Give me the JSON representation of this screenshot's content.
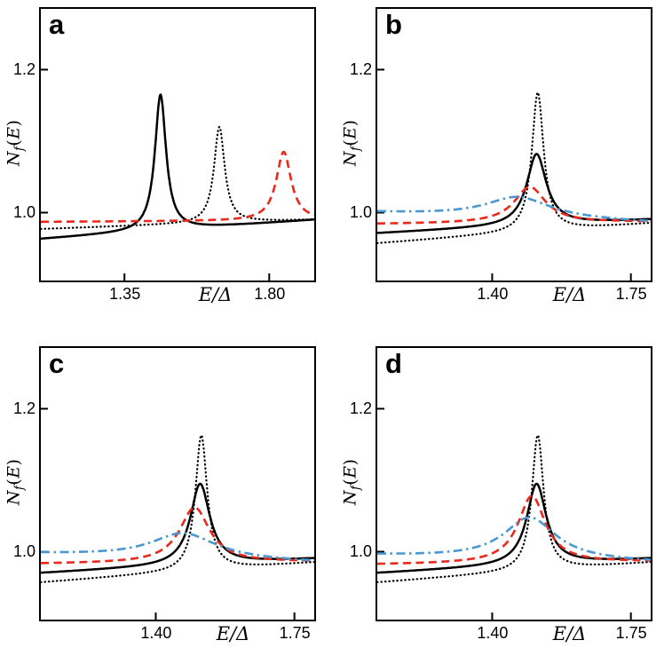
{
  "figure": {
    "ylabel_parts": {
      "base": "N",
      "sub": "f",
      "open": "(",
      "arg": "E",
      "close": ")"
    },
    "background": "#ffffff",
    "frame_color": "#000000"
  },
  "chart_data": [
    {
      "panel_label": "a",
      "type": "line",
      "xlabel": "E/Δ",
      "ylabel": "Nf(E)",
      "xlim": [
        1.09,
        1.94
      ],
      "ylim": [
        0.905,
        1.285
      ],
      "xticks": [
        {
          "value": 1.35,
          "label": "1.35"
        },
        {
          "value": 1.8,
          "label": "1.80"
        }
      ],
      "yticks": [
        {
          "value": 1.0,
          "label": "1.0"
        },
        {
          "value": 1.2,
          "label": "1.2"
        }
      ],
      "xlabel_frac": 0.655,
      "grid": false,
      "legend": "none",
      "model": "lorentzian_peak_on_linear_baseline",
      "series": [
        {
          "name": "solid-black",
          "line_style": "solid",
          "color": "#000000",
          "stroke_width": 2.5,
          "baseline_left": 0.963,
          "baseline_right": 0.99,
          "peak_x": 1.462,
          "peak_height": 1.165,
          "half_width": 0.021
        },
        {
          "name": "dotted-black",
          "line_style": "dotted",
          "color": "#000000",
          "stroke_width": 2.2,
          "baseline_left": 0.977,
          "baseline_right": 0.99,
          "peak_x": 1.645,
          "peak_height": 1.12,
          "half_width": 0.02
        },
        {
          "name": "dashed-red",
          "line_style": "dashed",
          "color": "#e8291c",
          "stroke_width": 2.6,
          "baseline_left": 0.987,
          "baseline_right": 0.989,
          "peak_x": 1.845,
          "peak_height": 1.085,
          "half_width": 0.028
        }
      ]
    },
    {
      "panel_label": "b",
      "type": "line",
      "xlabel": "E/Δ",
      "ylabel": "Nf(E)",
      "xlim": [
        1.11,
        1.8
      ],
      "ylim": [
        0.905,
        1.285
      ],
      "xticks": [
        {
          "value": 1.4,
          "label": "1.40"
        },
        {
          "value": 1.75,
          "label": "1.75"
        }
      ],
      "yticks": [
        {
          "value": 1.0,
          "label": "1.0"
        },
        {
          "value": 1.2,
          "label": "1.2"
        }
      ],
      "xlabel_frac": 0.72,
      "grid": false,
      "legend": "none",
      "model": "lorentzian_peak_on_linear_baseline",
      "series": [
        {
          "name": "dotted-black",
          "line_style": "dotted",
          "color": "#000000",
          "stroke_width": 2.2,
          "baseline_left": 0.957,
          "baseline_right": 0.985,
          "peak_x": 1.515,
          "peak_height": 1.168,
          "half_width": 0.018
        },
        {
          "name": "solid-black",
          "line_style": "solid",
          "color": "#000000",
          "stroke_width": 2.5,
          "baseline_left": 0.971,
          "baseline_right": 0.99,
          "peak_x": 1.512,
          "peak_height": 1.082,
          "half_width": 0.03
        },
        {
          "name": "dashed-red",
          "line_style": "dashed",
          "color": "#e8291c",
          "stroke_width": 2.6,
          "baseline_left": 0.984,
          "baseline_right": 0.987,
          "peak_x": 1.495,
          "peak_height": 1.036,
          "half_width": 0.048
        },
        {
          "name": "dashdot-blue",
          "line_style": "dashdot",
          "color": "#4a97d2",
          "stroke_width": 2.6,
          "baseline_left": 1.0,
          "baseline_right": 0.986,
          "peak_x": 1.465,
          "peak_height": 1.022,
          "half_width": 0.1
        }
      ]
    },
    {
      "panel_label": "c",
      "type": "line",
      "xlabel": "E/Δ",
      "ylabel": "Nf(E)",
      "xlim": [
        1.11,
        1.8
      ],
      "ylim": [
        0.905,
        1.285
      ],
      "xticks": [
        {
          "value": 1.4,
          "label": "1.40"
        },
        {
          "value": 1.75,
          "label": "1.75"
        }
      ],
      "yticks": [
        {
          "value": 1.0,
          "label": "1.0"
        },
        {
          "value": 1.2,
          "label": "1.2"
        }
      ],
      "xlabel_frac": 0.72,
      "grid": false,
      "legend": "none",
      "model": "lorentzian_peak_on_linear_baseline",
      "series": [
        {
          "name": "dotted-black",
          "line_style": "dotted",
          "color": "#000000",
          "stroke_width": 2.2,
          "baseline_left": 0.957,
          "baseline_right": 0.985,
          "peak_x": 1.515,
          "peak_height": 1.163,
          "half_width": 0.018
        },
        {
          "name": "solid-black",
          "line_style": "solid",
          "color": "#000000",
          "stroke_width": 2.5,
          "baseline_left": 0.97,
          "baseline_right": 0.99,
          "peak_x": 1.512,
          "peak_height": 1.095,
          "half_width": 0.03
        },
        {
          "name": "dashed-red",
          "line_style": "dashed",
          "color": "#e8291c",
          "stroke_width": 2.6,
          "baseline_left": 0.983,
          "baseline_right": 0.986,
          "peak_x": 1.498,
          "peak_height": 1.062,
          "half_width": 0.046
        },
        {
          "name": "dashdot-blue",
          "line_style": "dashdot",
          "color": "#4a97d2",
          "stroke_width": 2.6,
          "baseline_left": 0.997,
          "baseline_right": 0.985,
          "peak_x": 1.47,
          "peak_height": 1.026,
          "half_width": 0.1
        }
      ]
    },
    {
      "panel_label": "d",
      "type": "line",
      "xlabel": "E/Δ",
      "ylabel": "Nf(E)",
      "xlim": [
        1.11,
        1.8
      ],
      "ylim": [
        0.905,
        1.285
      ],
      "xticks": [
        {
          "value": 1.4,
          "label": "1.40"
        },
        {
          "value": 1.75,
          "label": "1.75"
        }
      ],
      "yticks": [
        {
          "value": 1.0,
          "label": "1.0"
        },
        {
          "value": 1.2,
          "label": "1.2"
        }
      ],
      "xlabel_frac": 0.72,
      "grid": false,
      "legend": "none",
      "model": "lorentzian_peak_on_linear_baseline",
      "series": [
        {
          "name": "dotted-black",
          "line_style": "dotted",
          "color": "#000000",
          "stroke_width": 2.2,
          "baseline_left": 0.957,
          "baseline_right": 0.985,
          "peak_x": 1.515,
          "peak_height": 1.163,
          "half_width": 0.018
        },
        {
          "name": "solid-black",
          "line_style": "solid",
          "color": "#000000",
          "stroke_width": 2.5,
          "baseline_left": 0.97,
          "baseline_right": 0.99,
          "peak_x": 1.512,
          "peak_height": 1.095,
          "half_width": 0.03
        },
        {
          "name": "dashed-red",
          "line_style": "dashed",
          "color": "#e8291c",
          "stroke_width": 2.6,
          "baseline_left": 0.982,
          "baseline_right": 0.986,
          "peak_x": 1.5,
          "peak_height": 1.078,
          "half_width": 0.042
        },
        {
          "name": "dashdot-blue",
          "line_style": "dashdot",
          "color": "#4a97d2",
          "stroke_width": 2.6,
          "baseline_left": 0.995,
          "baseline_right": 0.985,
          "peak_x": 1.495,
          "peak_height": 1.048,
          "half_width": 0.08
        }
      ]
    }
  ]
}
